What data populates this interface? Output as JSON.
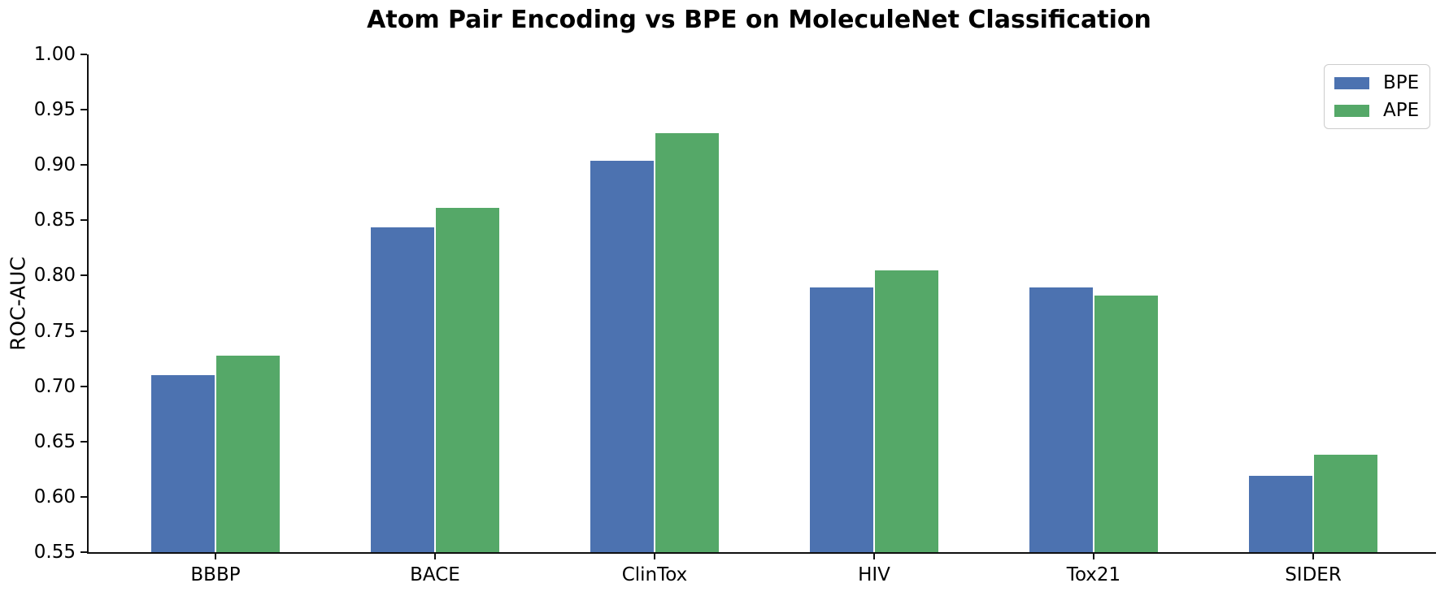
{
  "title": "Atom Pair Encoding vs BPE on MoleculeNet Classification",
  "chart_data": {
    "type": "bar",
    "title": "Atom Pair Encoding vs BPE on MoleculeNet Classification",
    "xlabel": "",
    "ylabel": "ROC-AUC",
    "categories": [
      "BBBP",
      "BACE",
      "ClinTox",
      "HIV",
      "Tox21",
      "SIDER"
    ],
    "series": [
      {
        "name": "BPE",
        "color": "#4C72B0",
        "values": [
          0.71,
          0.844,
          0.904,
          0.789,
          0.789,
          0.619
        ]
      },
      {
        "name": "APE",
        "color": "#55A868",
        "values": [
          0.728,
          0.861,
          0.929,
          0.805,
          0.782,
          0.638
        ]
      }
    ],
    "ylim": [
      0.55,
      1.0
    ],
    "yticks": [
      0.55,
      0.6,
      0.65,
      0.7,
      0.75,
      0.8,
      0.85,
      0.9,
      0.95,
      1.0
    ],
    "ytick_labels": [
      "0.55",
      "0.60",
      "0.65",
      "0.70",
      "0.75",
      "0.80",
      "0.85",
      "0.90",
      "0.95",
      "1.00"
    ],
    "grid": false,
    "legend_position": "upper right",
    "spine_color": "#0f0f0f",
    "text_color": "#000000"
  }
}
